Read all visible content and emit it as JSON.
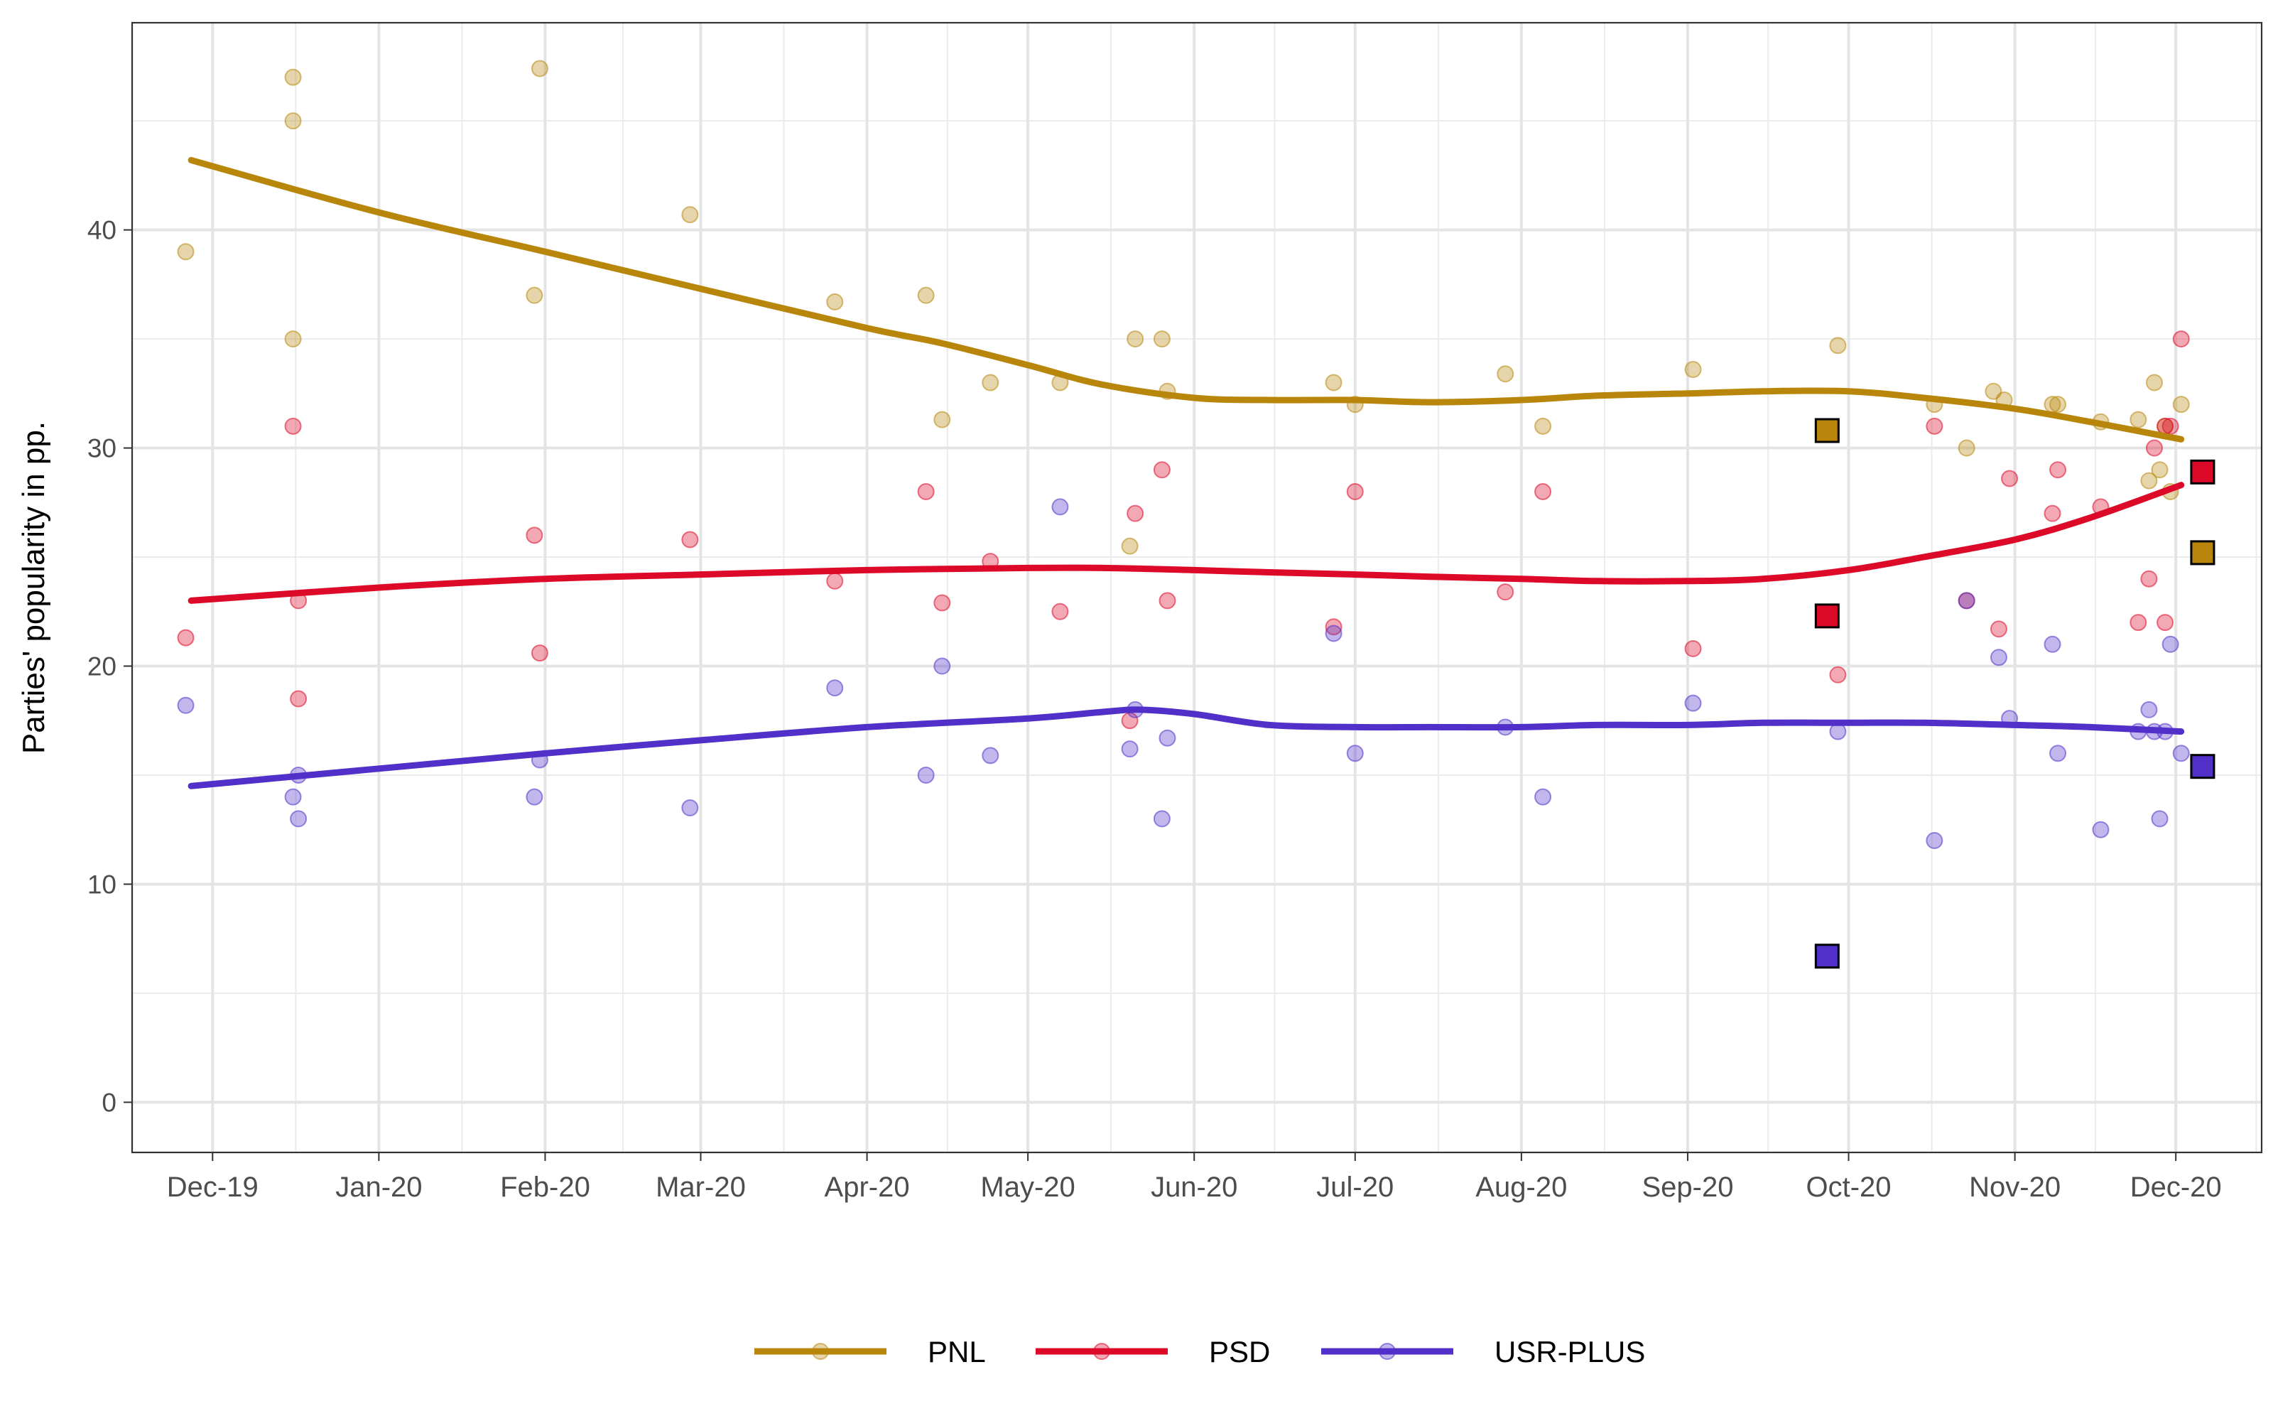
{
  "chart_data": {
    "type": "scatter",
    "ylabel": "Parties' popularity in pp.",
    "xlabel": "",
    "x_tick_labels": [
      "Dec-19",
      "Jan-20",
      "Feb-20",
      "Mar-20",
      "Apr-20",
      "May-20",
      "Jun-20",
      "Jul-20",
      "Aug-20",
      "Sep-20",
      "Oct-20",
      "Nov-20",
      "Dec-20"
    ],
    "x_ticks": [
      "2019-12-01",
      "2020-01-01",
      "2020-02-01",
      "2020-03-01",
      "2020-04-01",
      "2020-05-01",
      "2020-06-01",
      "2020-07-01",
      "2020-08-01",
      "2020-09-01",
      "2020-10-01",
      "2020-11-01",
      "2020-12-01"
    ],
    "xlim": [
      "2019-11-16",
      "2020-12-17"
    ],
    "y_ticks": [
      0,
      10,
      20,
      30,
      40
    ],
    "ylim": [
      -2.3,
      49.5
    ],
    "grid": true,
    "legend_position": "bottom",
    "series": [
      {
        "name": "PNL",
        "color": "#B8860B",
        "polls": [
          [
            "2019-11-26",
            39
          ],
          [
            "2019-12-16",
            47
          ],
          [
            "2019-12-16",
            45
          ],
          [
            "2019-12-16",
            35
          ],
          [
            "2020-01-30",
            37
          ],
          [
            "2020-01-31",
            47.4
          ],
          [
            "2020-02-28",
            40.7
          ],
          [
            "2020-03-26",
            36.7
          ],
          [
            "2020-04-12",
            37
          ],
          [
            "2020-04-15",
            31.3
          ],
          [
            "2020-04-24",
            33
          ],
          [
            "2020-05-07",
            33
          ],
          [
            "2020-05-20",
            25.5
          ],
          [
            "2020-05-21",
            35
          ],
          [
            "2020-05-26",
            35
          ],
          [
            "2020-05-27",
            32.6
          ],
          [
            "2020-06-27",
            33
          ],
          [
            "2020-07-01",
            32
          ],
          [
            "2020-07-29",
            33.4
          ],
          [
            "2020-08-05",
            31
          ],
          [
            "2020-09-02",
            33.6
          ],
          [
            "2020-09-29",
            34.7
          ],
          [
            "2020-10-17",
            32
          ],
          [
            "2020-10-23",
            30
          ],
          [
            "2020-10-28",
            32.6
          ],
          [
            "2020-10-30",
            32.2
          ],
          [
            "2020-11-08",
            32
          ],
          [
            "2020-11-09",
            32
          ],
          [
            "2020-11-17",
            31.2
          ],
          [
            "2020-11-24",
            31.3
          ],
          [
            "2020-11-26",
            28.5
          ],
          [
            "2020-11-27",
            33
          ],
          [
            "2020-11-28",
            29
          ],
          [
            "2020-11-29",
            31
          ],
          [
            "2020-11-30",
            28
          ],
          [
            "2020-12-02",
            32
          ]
        ],
        "trend": [
          [
            "2019-11-27",
            43.2
          ],
          [
            "2020-01-01",
            40.8
          ],
          [
            "2020-02-01",
            39
          ],
          [
            "2020-03-01",
            37.3
          ],
          [
            "2020-04-01",
            35.5
          ],
          [
            "2020-04-15",
            34.8
          ],
          [
            "2020-05-01",
            33.8
          ],
          [
            "2020-05-15",
            32.9
          ],
          [
            "2020-06-01",
            32.3
          ],
          [
            "2020-06-15",
            32.2
          ],
          [
            "2020-07-01",
            32.2
          ],
          [
            "2020-07-15",
            32.1
          ],
          [
            "2020-08-01",
            32.2
          ],
          [
            "2020-08-15",
            32.4
          ],
          [
            "2020-09-01",
            32.5
          ],
          [
            "2020-09-15",
            32.6
          ],
          [
            "2020-10-01",
            32.6
          ],
          [
            "2020-10-15",
            32.3
          ],
          [
            "2020-11-01",
            31.8
          ],
          [
            "2020-11-15",
            31.2
          ],
          [
            "2020-12-02",
            30.4
          ]
        ],
        "results": [
          [
            "2020-09-27",
            30.8
          ],
          [
            "2020-12-06",
            25.2
          ]
        ]
      },
      {
        "name": "PSD",
        "color": "#DC0A28",
        "polls": [
          [
            "2019-11-26",
            21.3
          ],
          [
            "2019-12-16",
            31
          ],
          [
            "2019-12-17",
            23
          ],
          [
            "2019-12-17",
            18.5
          ],
          [
            "2020-01-30",
            26
          ],
          [
            "2020-01-31",
            20.6
          ],
          [
            "2020-02-28",
            25.8
          ],
          [
            "2020-03-26",
            23.9
          ],
          [
            "2020-04-12",
            28
          ],
          [
            "2020-04-15",
            22.9
          ],
          [
            "2020-04-24",
            24.8
          ],
          [
            "2020-05-07",
            22.5
          ],
          [
            "2020-05-20",
            17.5
          ],
          [
            "2020-05-21",
            27
          ],
          [
            "2020-05-26",
            29
          ],
          [
            "2020-05-27",
            23
          ],
          [
            "2020-06-27",
            21.8
          ],
          [
            "2020-07-01",
            28
          ],
          [
            "2020-07-29",
            23.4
          ],
          [
            "2020-08-05",
            28
          ],
          [
            "2020-09-02",
            20.8
          ],
          [
            "2020-09-29",
            19.6
          ],
          [
            "2020-10-17",
            31
          ],
          [
            "2020-10-23",
            23
          ],
          [
            "2020-10-29",
            21.7
          ],
          [
            "2020-10-31",
            28.6
          ],
          [
            "2020-11-08",
            27
          ],
          [
            "2020-11-09",
            29
          ],
          [
            "2020-11-17",
            27.3
          ],
          [
            "2020-11-24",
            22
          ],
          [
            "2020-11-26",
            24
          ],
          [
            "2020-11-27",
            30
          ],
          [
            "2020-11-29",
            22
          ],
          [
            "2020-11-29",
            31
          ],
          [
            "2020-11-30",
            31
          ],
          [
            "2020-12-02",
            35
          ]
        ],
        "trend": [
          [
            "2019-11-27",
            23
          ],
          [
            "2020-01-01",
            23.6
          ],
          [
            "2020-02-01",
            24
          ],
          [
            "2020-03-01",
            24.2
          ],
          [
            "2020-04-01",
            24.4
          ],
          [
            "2020-05-01",
            24.5
          ],
          [
            "2020-05-15",
            24.5
          ],
          [
            "2020-06-01",
            24.4
          ],
          [
            "2020-06-15",
            24.3
          ],
          [
            "2020-07-01",
            24.2
          ],
          [
            "2020-07-15",
            24.1
          ],
          [
            "2020-08-01",
            24
          ],
          [
            "2020-08-15",
            23.9
          ],
          [
            "2020-09-01",
            23.9
          ],
          [
            "2020-09-15",
            24
          ],
          [
            "2020-10-01",
            24.4
          ],
          [
            "2020-10-15",
            25
          ],
          [
            "2020-11-01",
            25.8
          ],
          [
            "2020-11-15",
            26.8
          ],
          [
            "2020-12-02",
            28.3
          ]
        ],
        "results": [
          [
            "2020-09-27",
            22.3
          ],
          [
            "2020-12-06",
            28.9
          ]
        ]
      },
      {
        "name": "USR-PLUS",
        "color": "#5030C8",
        "polls": [
          [
            "2019-11-26",
            18.2
          ],
          [
            "2019-12-16",
            14
          ],
          [
            "2019-12-17",
            15
          ],
          [
            "2019-12-17",
            13
          ],
          [
            "2020-01-30",
            14
          ],
          [
            "2020-01-31",
            15.7
          ],
          [
            "2020-02-28",
            13.5
          ],
          [
            "2020-03-26",
            19
          ],
          [
            "2020-04-12",
            15
          ],
          [
            "2020-04-15",
            20
          ],
          [
            "2020-04-24",
            15.9
          ],
          [
            "2020-05-07",
            27.3
          ],
          [
            "2020-05-20",
            16.2
          ],
          [
            "2020-05-21",
            18
          ],
          [
            "2020-05-26",
            13
          ],
          [
            "2020-05-27",
            16.7
          ],
          [
            "2020-06-27",
            21.5
          ],
          [
            "2020-07-01",
            16
          ],
          [
            "2020-07-29",
            17.2
          ],
          [
            "2020-08-05",
            14
          ],
          [
            "2020-09-02",
            18.3
          ],
          [
            "2020-09-29",
            17
          ],
          [
            "2020-10-17",
            12
          ],
          [
            "2020-10-23",
            23
          ],
          [
            "2020-10-29",
            20.4
          ],
          [
            "2020-10-31",
            17.6
          ],
          [
            "2020-11-08",
            21
          ],
          [
            "2020-11-09",
            16
          ],
          [
            "2020-11-17",
            12.5
          ],
          [
            "2020-11-24",
            17
          ],
          [
            "2020-11-26",
            18
          ],
          [
            "2020-11-27",
            17
          ],
          [
            "2020-11-28",
            13
          ],
          [
            "2020-11-29",
            17
          ],
          [
            "2020-11-30",
            21
          ],
          [
            "2020-12-02",
            16
          ]
        ],
        "trend": [
          [
            "2019-11-27",
            14.5
          ],
          [
            "2020-01-01",
            15.3
          ],
          [
            "2020-02-01",
            16
          ],
          [
            "2020-03-01",
            16.6
          ],
          [
            "2020-04-01",
            17.2
          ],
          [
            "2020-05-01",
            17.6
          ],
          [
            "2020-05-15",
            17.9
          ],
          [
            "2020-05-22",
            18
          ],
          [
            "2020-06-01",
            17.8
          ],
          [
            "2020-06-15",
            17.3
          ],
          [
            "2020-07-01",
            17.2
          ],
          [
            "2020-07-15",
            17.2
          ],
          [
            "2020-08-01",
            17.2
          ],
          [
            "2020-08-15",
            17.3
          ],
          [
            "2020-09-01",
            17.3
          ],
          [
            "2020-09-15",
            17.4
          ],
          [
            "2020-10-01",
            17.4
          ],
          [
            "2020-10-15",
            17.4
          ],
          [
            "2020-11-01",
            17.3
          ],
          [
            "2020-11-15",
            17.2
          ],
          [
            "2020-12-02",
            17
          ]
        ],
        "results": [
          [
            "2020-09-27",
            6.7
          ],
          [
            "2020-12-06",
            15.4
          ]
        ]
      }
    ]
  }
}
